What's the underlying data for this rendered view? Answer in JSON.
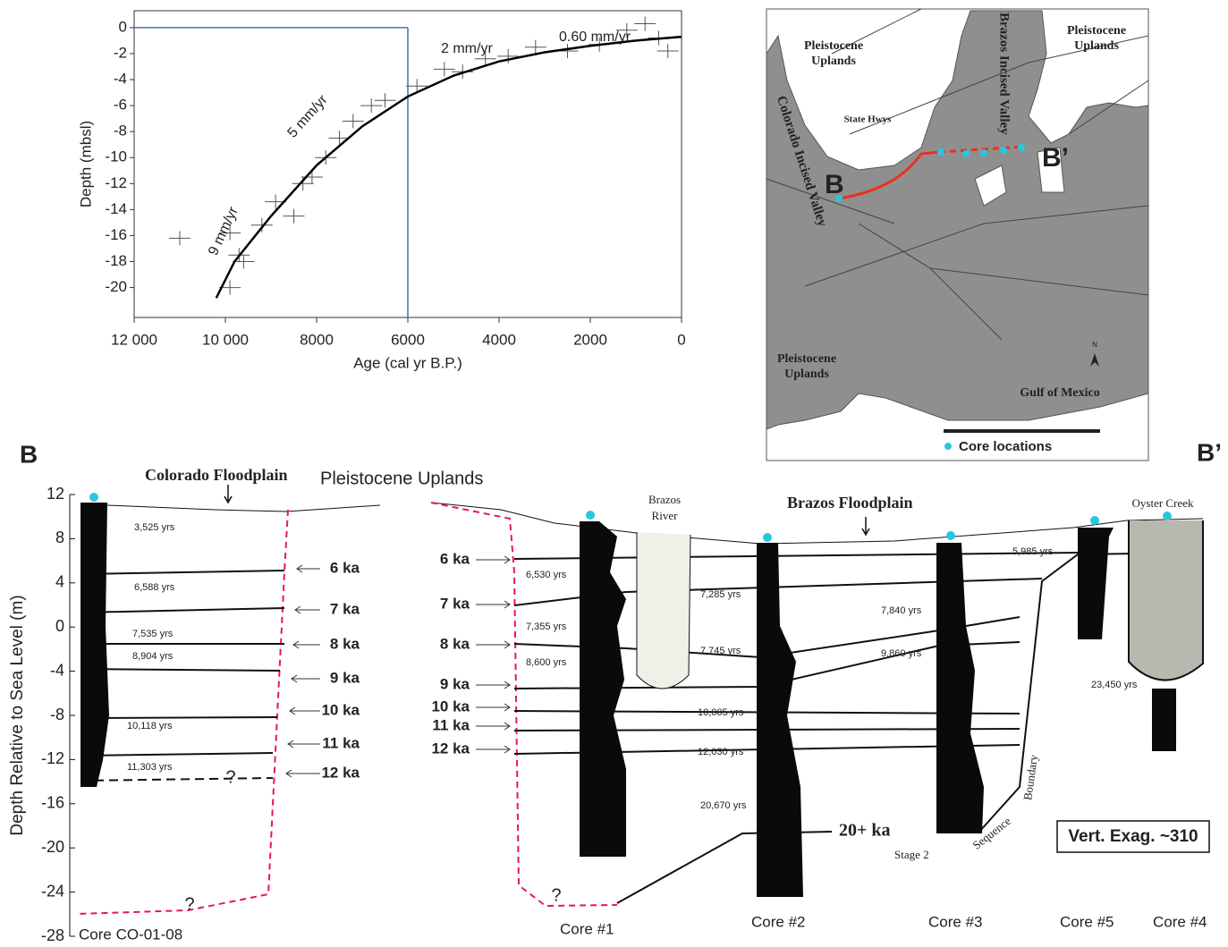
{
  "chart_data": {
    "type": "line",
    "x_label": "Age (cal yr B.P.)",
    "y_label": "Depth (mbsl)",
    "x": [
      10200,
      9800,
      9000,
      8000,
      7000,
      6000,
      5000,
      4000,
      3000,
      2000,
      1000,
      0
    ],
    "values": [
      -20.8,
      -18,
      -14.5,
      -10.6,
      -7.6,
      -5.3,
      -3.7,
      -2.6,
      -1.9,
      -1.4,
      -1.0,
      -0.7
    ],
    "color": "#000000",
    "observations": {
      "x": [
        11000,
        9900,
        9700,
        9600,
        9900,
        9200,
        8900,
        8500,
        8300,
        8100,
        7800,
        7500,
        7200,
        6800,
        6500,
        5800,
        5200,
        4800,
        4300,
        3800,
        3200,
        2500,
        1800,
        1200,
        800,
        500,
        300
      ],
      "y": [
        -16.2,
        -15.8,
        -17.5,
        -18,
        -20,
        -15.2,
        -13.4,
        -14.5,
        -12,
        -11.5,
        -10,
        -8.5,
        -7.2,
        -6,
        -5.6,
        -4.5,
        -3.2,
        -3.4,
        -2.4,
        -2.2,
        -1.5,
        -1.8,
        -1.3,
        -0.2,
        0.3,
        -0.8,
        -1.8
      ]
    },
    "xlim": [
      12000,
      0
    ],
    "ylim": [
      -22.3,
      1.3
    ],
    "xticks": [
      {
        "value": 12000,
        "label": "12 000"
      },
      {
        "value": 10000,
        "label": "10 000"
      },
      8000,
      6000,
      4000,
      2000,
      0
    ],
    "yticks": [
      0,
      -2,
      -4,
      -6,
      -8,
      -10,
      -12,
      -14,
      -16,
      -18,
      -20
    ],
    "annotations": [
      "0.60 mm/yr",
      "2 mm/yr",
      "5 mm/yr",
      "9 mm/yr"
    ],
    "reference": {
      "x": 6000,
      "y": 0
    }
  },
  "map": {
    "upland_labels": [
      [
        "Pleistocene",
        "Uplands"
      ],
      [
        "Pleistocene",
        "Uplands"
      ],
      [
        "Pleistocene",
        "Uplands"
      ]
    ],
    "state_hwys": "State Hwys",
    "brazos_valley": "Brazos Incised Valley",
    "colorado_valley": "Colorado Incised Valley",
    "section_start": "B",
    "section_end": "B’",
    "gulf": "Gulf of Mexico",
    "legend": "Core locations",
    "north": "N"
  },
  "cross_section": {
    "start": "B",
    "end": "B’",
    "y_label": "Depth Relative to Sea Level (m)",
    "ylim": [
      -28,
      12
    ],
    "yticks": [
      12,
      8,
      4,
      0,
      -4,
      -8,
      -12,
      -16,
      -20,
      -24,
      -28
    ],
    "colorado_floodplain": "Colorado Floodplain",
    "pleistocene_uplands": "Pleistocene Uplands",
    "brazos_floodplain": "Brazos Floodplain",
    "brazos_river": [
      "Brazos",
      "River"
    ],
    "oyster_creek": "Oyster Creek",
    "age_lines_left": [
      "6 ka",
      "7 ka",
      "8 ka",
      "9 ka",
      "10 ka",
      "11 ka",
      "12 ka"
    ],
    "age_lines_right": [
      "6 ka",
      "7 ka",
      "8 ka",
      "9 ka",
      "10 ka",
      "11 ka",
      "12 ka"
    ],
    "old_surface": "20+ ka",
    "dates": [
      "3,525 yrs",
      "6,588 yrs",
      "7,535 yrs",
      "8,904 yrs",
      "10,118 yrs",
      "11,303 yrs",
      "6,530 yrs",
      "7,355 yrs",
      "8,600 yrs",
      "7,285 yrs",
      "7,745 yrs",
      "10,005 yrs",
      "12,030 yrs",
      "20,670 yrs",
      "7,840 yrs",
      "9,860 yrs",
      "5,985 yrs",
      "23,450 yrs"
    ],
    "cores": [
      "Core CO-01-08",
      "Core #1",
      "Core #2",
      "Core #3",
      "Core #5",
      "Core #4"
    ],
    "stage": "Stage 2",
    "sequence": "Sequence",
    "boundary": "Boundary",
    "vertical_exaggeration": "Vert. Exag. ~310",
    "unknowns": [
      "?",
      "?",
      "?"
    ]
  }
}
